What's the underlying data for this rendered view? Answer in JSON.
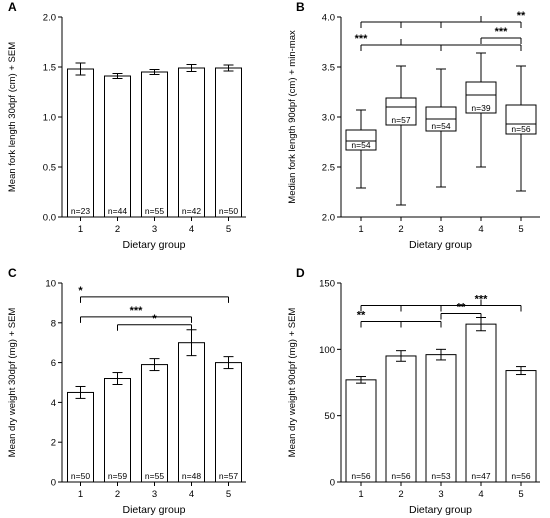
{
  "chart_data": [
    {
      "panel_label": "A",
      "type": "bar",
      "categories": [
        "1",
        "2",
        "3",
        "4",
        "5"
      ],
      "values": [
        1.48,
        1.41,
        1.45,
        1.49,
        1.49
      ],
      "errors": [
        0.06,
        0.025,
        0.025,
        0.035,
        0.03
      ],
      "n_labels": [
        "n=23",
        "n=44",
        "n=55",
        "n=42",
        "n=50"
      ],
      "xlabel": "Dietary group",
      "ylabel": "Mean fork length 30dpf (cm) + SEM",
      "ylim": [
        0,
        2.0
      ],
      "yticks": [
        "0.0",
        "0.5",
        "1.0",
        "1.5",
        "2.0"
      ],
      "significance": []
    },
    {
      "panel_label": "B",
      "type": "box",
      "categories": [
        "1",
        "2",
        "3",
        "4",
        "5"
      ],
      "boxes": [
        {
          "min": 2.29,
          "q1": 2.67,
          "median": 2.76,
          "q3": 2.87,
          "max": 3.07
        },
        {
          "min": 2.12,
          "q1": 2.92,
          "median": 3.1,
          "q3": 3.19,
          "max": 3.51
        },
        {
          "min": 2.3,
          "q1": 2.86,
          "median": 2.98,
          "q3": 3.1,
          "max": 3.48
        },
        {
          "min": 2.5,
          "q1": 3.04,
          "median": 3.22,
          "q3": 3.35,
          "max": 3.64
        },
        {
          "min": 2.26,
          "q1": 2.83,
          "median": 2.93,
          "q3": 3.12,
          "max": 3.51
        }
      ],
      "n_labels": [
        "n=54",
        "n=57",
        "n=54",
        "n=39",
        "n=56"
      ],
      "xlabel": "Dietary group",
      "ylabel": "Median fork length 90dpf (cm) + min-max",
      "ylim": [
        2.0,
        4.0
      ],
      "yticks": [
        "2.0",
        "2.5",
        "3.0",
        "3.5",
        "4.0"
      ],
      "significance": [
        {
          "from": 1,
          "to": 5,
          "stars": "**",
          "drops": [
            1,
            2,
            3,
            5
          ],
          "stem": 4,
          "label_at": 5,
          "level": 3.95
        },
        {
          "from": 1,
          "to": 5,
          "stars": "***",
          "drops": [
            1,
            3,
            5
          ],
          "stem": 2,
          "label_at": 1,
          "level": 3.72
        },
        {
          "from": 4,
          "to": 5,
          "stars": "***",
          "drops": [
            4,
            5
          ],
          "stem": null,
          "label_at": 4.5,
          "level": 3.79
        }
      ]
    },
    {
      "panel_label": "C",
      "type": "bar",
      "categories": [
        "1",
        "2",
        "3",
        "4",
        "5"
      ],
      "values": [
        4.5,
        5.2,
        5.9,
        7.0,
        6.0
      ],
      "errors": [
        0.3,
        0.3,
        0.3,
        0.65,
        0.3
      ],
      "n_labels": [
        "n=50",
        "n=59",
        "n=55",
        "n=48",
        "n=57"
      ],
      "xlabel": "Dietary group",
      "ylabel": "Mean dry weight 30dpf (mg) + SEM",
      "ylim": [
        0,
        10
      ],
      "yticks": [
        "0",
        "2",
        "4",
        "6",
        "8",
        "10"
      ],
      "significance": [
        {
          "from": 1,
          "to": 5,
          "stars": "*",
          "drops": [
            1,
            5
          ],
          "stem": null,
          "label_at": 1,
          "level": 9.3
        },
        {
          "from": 1,
          "to": 4,
          "stars": "***",
          "drops": [
            1,
            4
          ],
          "stem": null,
          "label_at": 2.5,
          "level": 8.3
        },
        {
          "from": 2,
          "to": 4,
          "stars": "*",
          "drops": [
            2,
            4
          ],
          "stem": null,
          "label_at": 3,
          "level": 7.9
        }
      ]
    },
    {
      "panel_label": "D",
      "type": "bar",
      "categories": [
        "1",
        "2",
        "3",
        "4",
        "5"
      ],
      "values": [
        77,
        95,
        96,
        119,
        84
      ],
      "errors": [
        2.5,
        4,
        4,
        5,
        3
      ],
      "n_labels": [
        "n=56",
        "n=56",
        "n=53",
        "n=47",
        "n=56"
      ],
      "xlabel": "Dietary group",
      "ylabel": "Mean dry weight 90dpf (mg) + SEM",
      "ylim": [
        0,
        150
      ],
      "yticks": [
        "0",
        "50",
        "100",
        "150"
      ],
      "significance": [
        {
          "from": 1,
          "to": 5,
          "stars": "***",
          "drops": [
            1,
            2,
            3,
            5
          ],
          "stem": 4,
          "label_at": 4,
          "level": 133
        },
        {
          "from": 1,
          "to": 3,
          "stars": "**",
          "drops": [
            1,
            2,
            3
          ],
          "stem": null,
          "label_at": 1,
          "level": 121
        },
        {
          "from": 3,
          "to": 4,
          "stars": "**",
          "drops": [
            3,
            4
          ],
          "stem": null,
          "label_at": 3.5,
          "level": 127
        }
      ]
    }
  ]
}
